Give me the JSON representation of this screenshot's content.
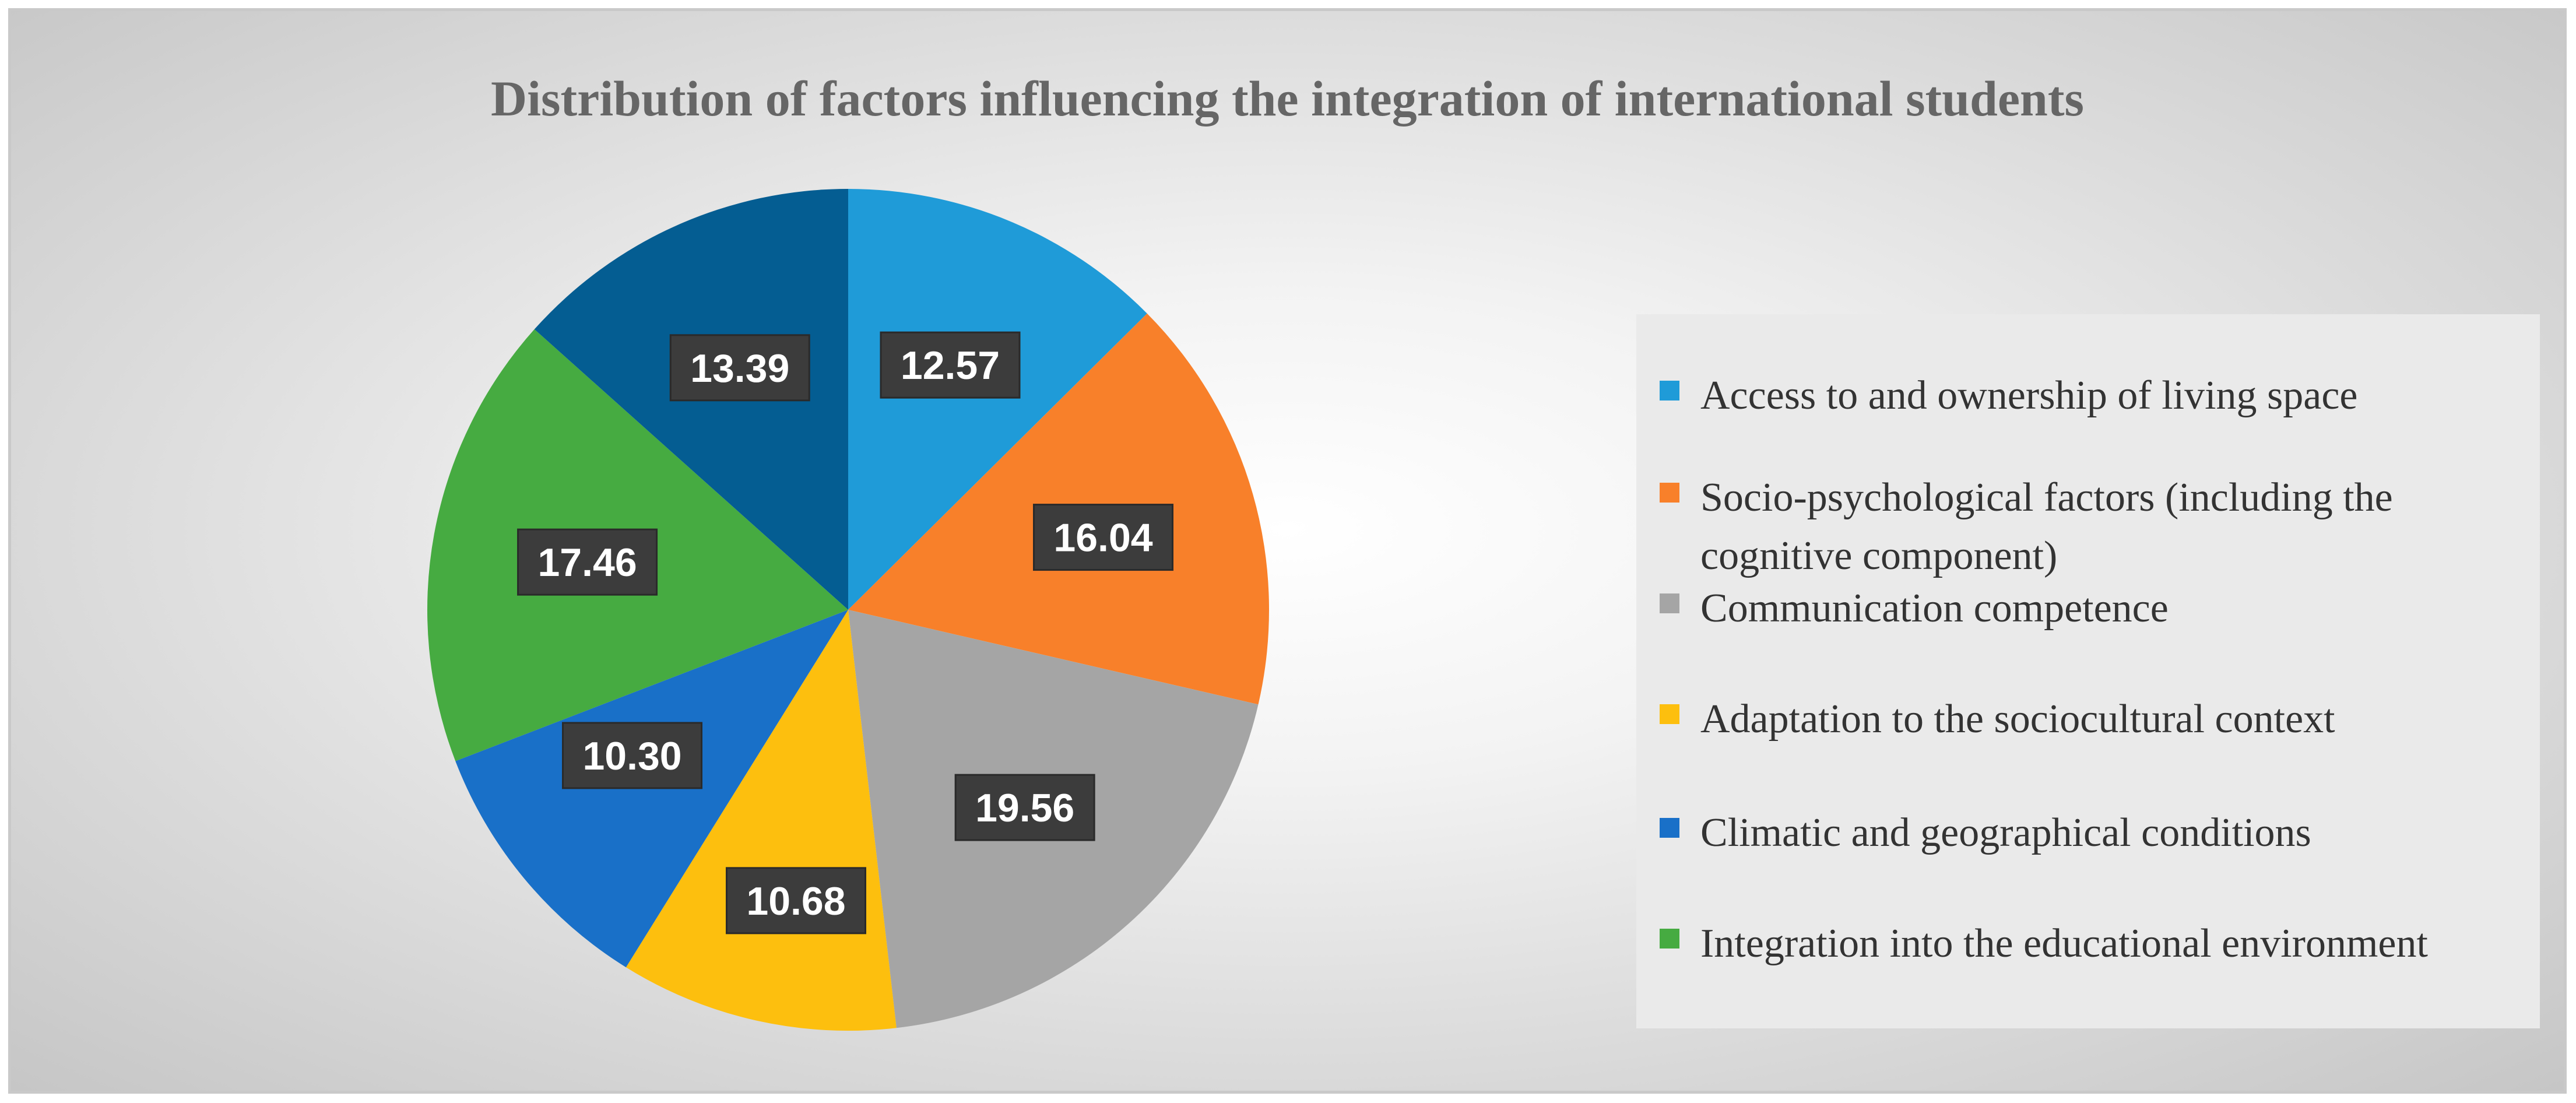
{
  "chart_data": {
    "type": "pie",
    "title": "Distribution of factors influencing the integration of international students",
    "categories": [
      "Access to and ownership of living space",
      "Socio-psychological factors (including the cognitive component)",
      "Communication competence",
      "Adaptation to the sociocultural context",
      "Climatic and geographical conditions",
      "Integration into the educational environment",
      ""
    ],
    "values": [
      12.57,
      16.04,
      19.56,
      10.68,
      10.3,
      17.46,
      13.39
    ],
    "data_labels": [
      "12.57",
      "16.04",
      "19.56",
      "10.68",
      "10.30",
      "17.46",
      "13.39"
    ],
    "colors": [
      "#1f9bd8",
      "#f8802a",
      "#a5a5a5",
      "#fdbf0e",
      "#1970c8",
      "#46ab41",
      "#045d92"
    ],
    "legend_position": "right",
    "start_angle": "12 o'clock",
    "direction": "clockwise"
  }
}
